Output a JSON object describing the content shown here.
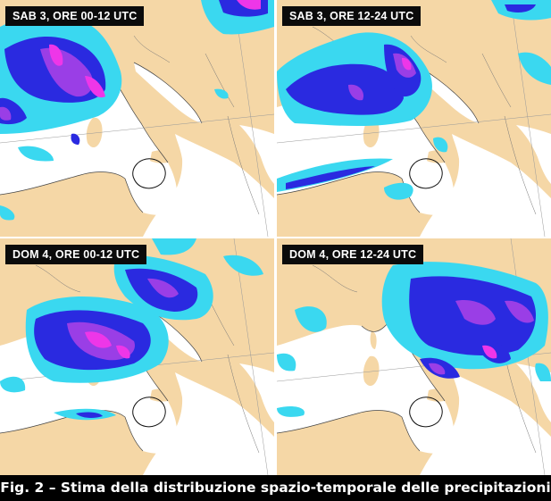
{
  "panels": [
    {
      "label": "SAB 3, ORE 00-12 UTC"
    },
    {
      "label": "SAB 3, ORE 12-24 UTC"
    },
    {
      "label": "DOM 4, ORE 00-12 UTC"
    },
    {
      "label": "DOM 4, ORE 12-24 UTC"
    }
  ],
  "caption": "Fig. 2 – Stima della distribuzione spazio-temporale delle precipitazioni",
  "colors": {
    "land": "#f5d7a6",
    "sea": "#ffffff",
    "precip_light": "#3ad8f0",
    "precip_moderate": "#2a2ae0",
    "precip_heavy": "#9a3ee6",
    "precip_extreme": "#ee36e8"
  }
}
